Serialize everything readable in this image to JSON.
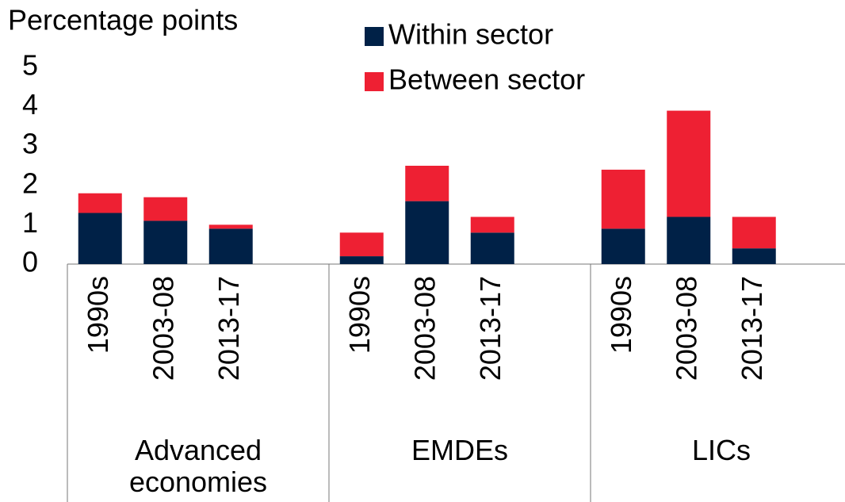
{
  "chart_data": {
    "type": "stacked_bar",
    "y_label": "Percentage points",
    "groups": [
      {
        "name": "Advanced economies",
        "categories": [
          "1990s",
          "2003-08",
          "2013-17"
        ]
      },
      {
        "name": "EMDEs",
        "categories": [
          "1990s",
          "2003-08",
          "2013-17"
        ]
      },
      {
        "name": "LICs",
        "categories": [
          "1990s",
          "2003-08",
          "2013-17"
        ]
      }
    ],
    "series": [
      {
        "name": "Within sector",
        "color": "#002147",
        "values": [
          1.3,
          1.1,
          0.9,
          0.2,
          1.6,
          0.8,
          0.9,
          1.2,
          0.4
        ]
      },
      {
        "name": "Between sector",
        "color": "#ee2033",
        "values": [
          0.5,
          0.6,
          0.1,
          0.6,
          0.9,
          0.4,
          1.5,
          2.7,
          0.8
        ]
      }
    ],
    "ylim": [
      0,
      5
    ],
    "yticks": [
      0,
      1,
      2,
      3,
      4,
      5
    ],
    "grid": false,
    "legend": "top"
  }
}
